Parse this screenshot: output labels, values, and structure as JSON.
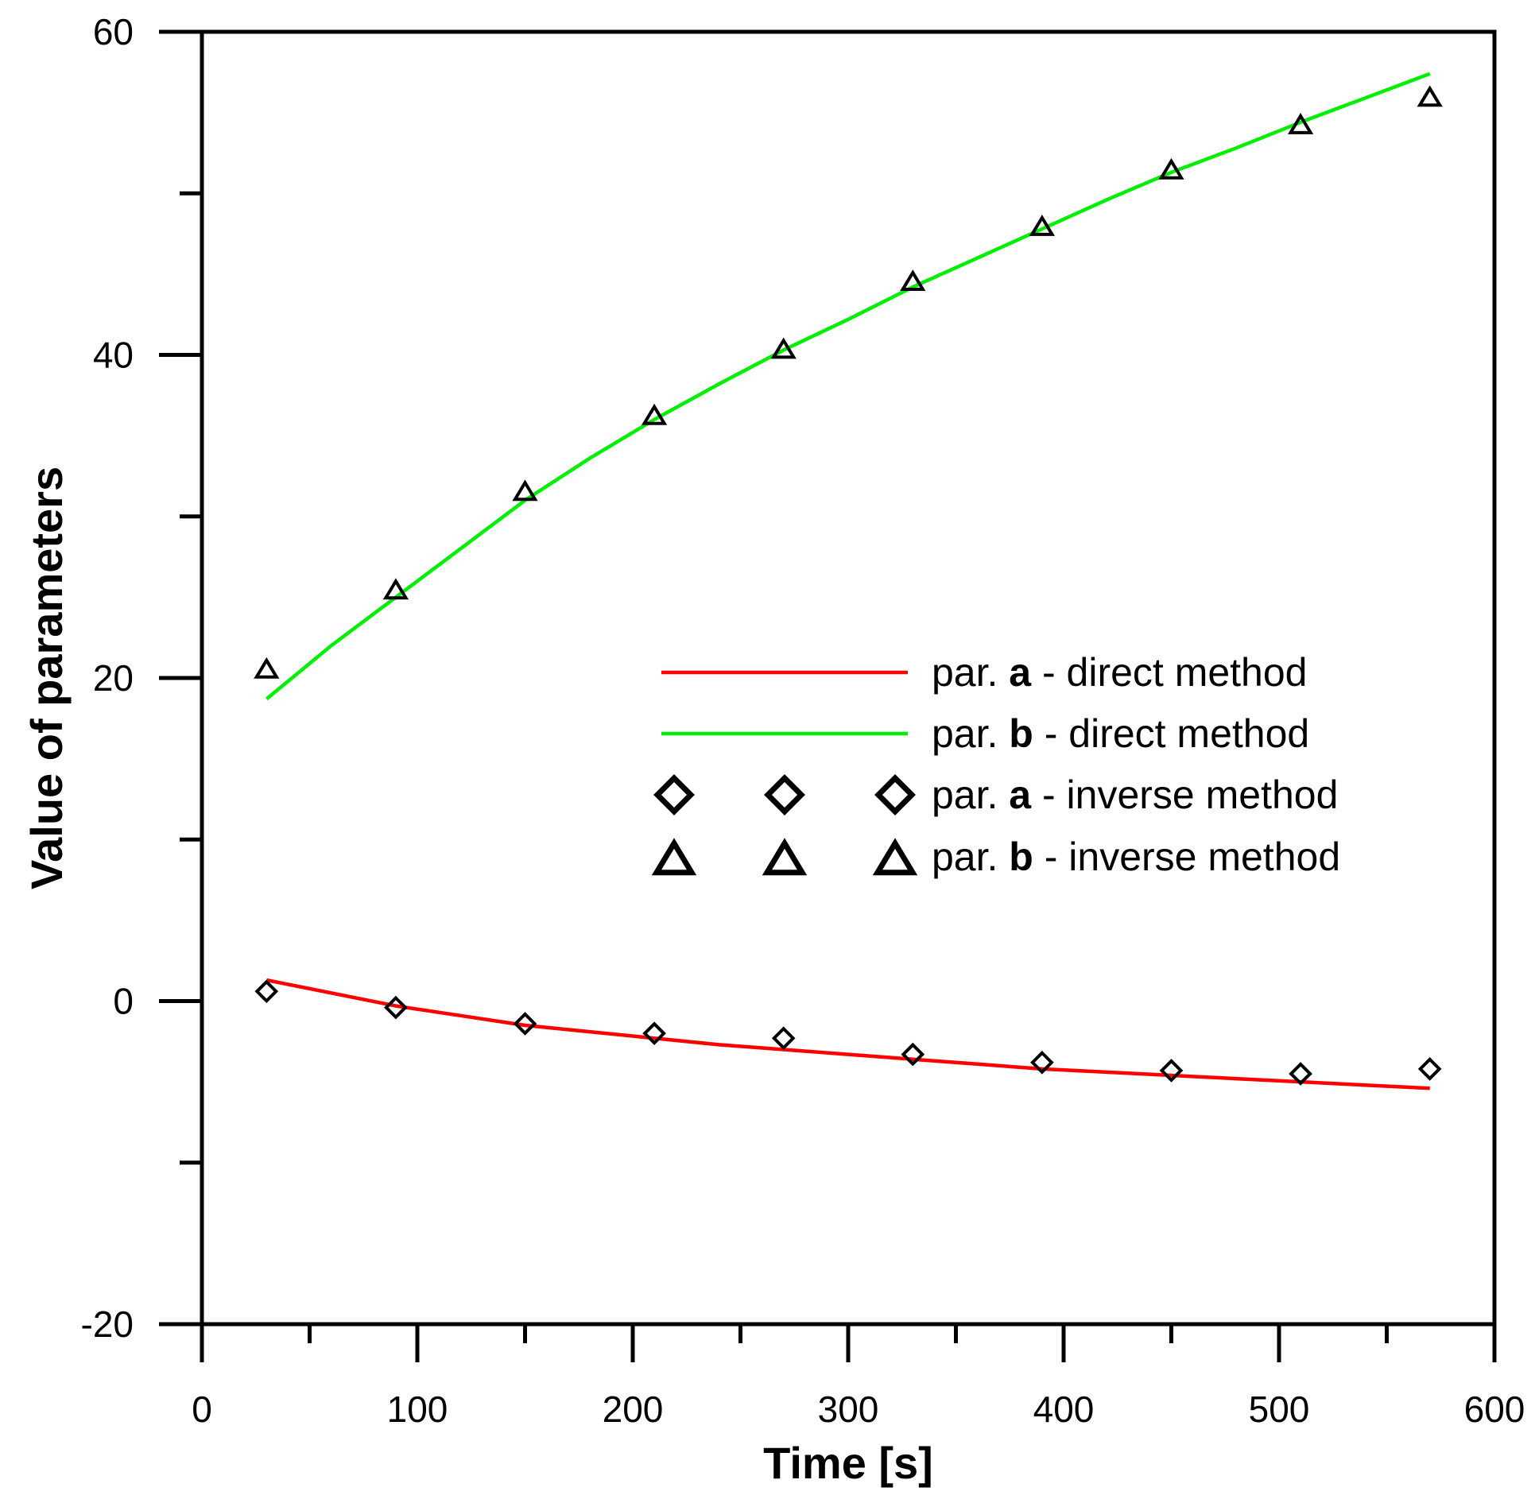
{
  "chart_data": {
    "type": "line",
    "title": "",
    "xlabel": "Time [s]",
    "ylabel": "Value of parameters",
    "xlim": [
      0,
      600
    ],
    "ylim": [
      -20,
      60
    ],
    "x_ticks": [
      0,
      100,
      200,
      300,
      400,
      500,
      600
    ],
    "x_tick_labels": [
      "0",
      "100",
      "200",
      "300",
      "400",
      "500",
      "600"
    ],
    "x_minor_ticks": [
      50,
      150,
      250,
      350,
      450,
      550
    ],
    "y_ticks": [
      -20,
      0,
      20,
      40,
      60
    ],
    "y_tick_labels": [
      "-20",
      "0",
      "20",
      "40",
      "60"
    ],
    "y_minor_ticks": [
      -10,
      10,
      30,
      50
    ],
    "grid": false,
    "legend_position": "center-right",
    "series": [
      {
        "name": "par. a - direct method",
        "legend_prefix": "par. ",
        "legend_param": "a",
        "legend_suffix": " - direct method",
        "kind": "line",
        "color": "#ff0000",
        "x": [
          30,
          60,
          90,
          120,
          150,
          180,
          210,
          240,
          270,
          300,
          330,
          360,
          390,
          420,
          450,
          480,
          510,
          540,
          570
        ],
        "y": [
          1.3,
          0.5,
          -0.3,
          -0.9,
          -1.5,
          -1.9,
          -2.3,
          -2.7,
          -3.0,
          -3.3,
          -3.6,
          -3.9,
          -4.2,
          -4.4,
          -4.6,
          -4.8,
          -5.0,
          -5.2,
          -5.4
        ]
      },
      {
        "name": "par. b - direct method",
        "legend_prefix": "par. ",
        "legend_param": "b",
        "legend_suffix": " - direct method",
        "kind": "line",
        "color": "#00ee00",
        "x": [
          30,
          60,
          90,
          120,
          150,
          180,
          210,
          240,
          270,
          300,
          330,
          360,
          390,
          420,
          450,
          480,
          510,
          540,
          570
        ],
        "y": [
          18.7,
          22.0,
          25.0,
          28.0,
          31.0,
          33.6,
          36.0,
          38.2,
          40.3,
          42.2,
          44.2,
          46.0,
          47.8,
          49.6,
          51.3,
          52.8,
          54.4,
          55.9,
          57.4
        ]
      },
      {
        "name": "par. a - inverse method",
        "legend_prefix": "par. ",
        "legend_param": "a",
        "legend_suffix": " - inverse method",
        "kind": "marker",
        "marker": "diamond",
        "color": "#000000",
        "x": [
          30,
          90,
          150,
          210,
          270,
          330,
          390,
          450,
          510,
          570
        ],
        "y": [
          0.6,
          -0.4,
          -1.4,
          -2.0,
          -2.3,
          -3.3,
          -3.8,
          -4.3,
          -4.5,
          -4.2
        ]
      },
      {
        "name": "par. b - inverse method",
        "legend_prefix": "par. ",
        "legend_param": "b",
        "legend_suffix": " - inverse method",
        "kind": "marker",
        "marker": "triangle",
        "color": "#000000",
        "x": [
          30,
          90,
          150,
          210,
          270,
          330,
          390,
          450,
          510,
          570
        ],
        "y": [
          20.6,
          25.5,
          31.6,
          36.3,
          40.4,
          44.6,
          48.0,
          51.5,
          54.3,
          56.0
        ]
      }
    ]
  }
}
